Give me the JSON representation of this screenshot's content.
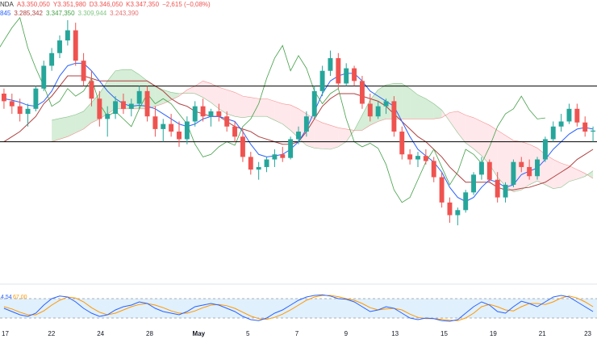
{
  "legend": {
    "ohlc": {
      "prefix": "NDA",
      "open": "A3.350,050",
      "high": "Y3.351,980",
      "low": "D3.346,050",
      "close": "K3.347,350",
      "change": "−2,615 (−0,08%)"
    },
    "ichimoku": {
      "v1": "845",
      "v2": "3.285,342",
      "v3": "3.347,350",
      "v4": "3.309,944",
      "v5": "3.243,390"
    }
  },
  "colors": {
    "bull": "#26a69a",
    "bear": "#ef5350",
    "tenkan": "#2962ff",
    "kijun": "#b04040",
    "chikou": "#43a047",
    "cloud_bull": "#a5d6a7",
    "cloud_bear": "#ffcdd2",
    "stoch_k": "#2962ff",
    "stoch_d": "#ff9800",
    "stoch_band": "#bbdefb"
  },
  "chart_data": {
    "type": "candlestick",
    "x_labels": [
      "17",
      "22",
      "24",
      "28",
      "May",
      "5",
      "7",
      "9",
      "13",
      "15",
      "19",
      "21",
      "23"
    ],
    "y_range": [
      3020,
      3530
    ],
    "horizontal_levels": [
      3400,
      3290
    ],
    "candles": [
      [
        3385,
        3395,
        3355,
        3370
      ],
      [
        3370,
        3385,
        3345,
        3360
      ],
      [
        3360,
        3375,
        3330,
        3345
      ],
      [
        3345,
        3365,
        3320,
        3355
      ],
      [
        3355,
        3400,
        3350,
        3395
      ],
      [
        3395,
        3450,
        3390,
        3440
      ],
      [
        3440,
        3475,
        3430,
        3465
      ],
      [
        3465,
        3500,
        3455,
        3490
      ],
      [
        3490,
        3530,
        3480,
        3510
      ],
      [
        3510,
        3525,
        3440,
        3450
      ],
      [
        3450,
        3465,
        3400,
        3410
      ],
      [
        3410,
        3430,
        3360,
        3375
      ],
      [
        3375,
        3390,
        3320,
        3335
      ],
      [
        3335,
        3360,
        3300,
        3345
      ],
      [
        3345,
        3380,
        3335,
        3370
      ],
      [
        3370,
        3385,
        3345,
        3355
      ],
      [
        3355,
        3375,
        3340,
        3365
      ],
      [
        3365,
        3400,
        3355,
        3390
      ],
      [
        3390,
        3400,
        3330,
        3340
      ],
      [
        3340,
        3360,
        3300,
        3315
      ],
      [
        3315,
        3335,
        3290,
        3325
      ],
      [
        3325,
        3345,
        3300,
        3310
      ],
      [
        3310,
        3330,
        3280,
        3295
      ],
      [
        3295,
        3340,
        3285,
        3330
      ],
      [
        3330,
        3370,
        3320,
        3360
      ],
      [
        3360,
        3375,
        3330,
        3340
      ],
      [
        3340,
        3355,
        3320,
        3350
      ],
      [
        3350,
        3365,
        3330,
        3340
      ],
      [
        3340,
        3350,
        3310,
        3320
      ],
      [
        3320,
        3330,
        3290,
        3300
      ],
      [
        3300,
        3315,
        3250,
        3260
      ],
      [
        3260,
        3270,
        3225,
        3235
      ],
      [
        3235,
        3250,
        3215,
        3240
      ],
      [
        3240,
        3260,
        3230,
        3255
      ],
      [
        3255,
        3275,
        3240,
        3265
      ],
      [
        3265,
        3280,
        3250,
        3258
      ],
      [
        3258,
        3300,
        3255,
        3295
      ],
      [
        3295,
        3320,
        3285,
        3310
      ],
      [
        3310,
        3350,
        3300,
        3340
      ],
      [
        3340,
        3400,
        3335,
        3390
      ],
      [
        3390,
        3440,
        3380,
        3430
      ],
      [
        3430,
        3470,
        3420,
        3455
      ],
      [
        3455,
        3465,
        3395,
        3405
      ],
      [
        3405,
        3445,
        3400,
        3435
      ],
      [
        3435,
        3440,
        3400,
        3410
      ],
      [
        3410,
        3420,
        3355,
        3365
      ],
      [
        3365,
        3385,
        3330,
        3340
      ],
      [
        3340,
        3370,
        3335,
        3360
      ],
      [
        3360,
        3375,
        3345,
        3370
      ],
      [
        3370,
        3380,
        3300,
        3310
      ],
      [
        3310,
        3320,
        3255,
        3265
      ],
      [
        3265,
        3275,
        3245,
        3255
      ],
      [
        3255,
        3270,
        3240,
        3262
      ],
      [
        3262,
        3275,
        3245,
        3252
      ],
      [
        3252,
        3260,
        3210,
        3220
      ],
      [
        3220,
        3230,
        3160,
        3170
      ],
      [
        3170,
        3180,
        3130,
        3145
      ],
      [
        3145,
        3160,
        3125,
        3155
      ],
      [
        3155,
        3195,
        3150,
        3190
      ],
      [
        3190,
        3230,
        3185,
        3225
      ],
      [
        3225,
        3260,
        3215,
        3250
      ],
      [
        3250,
        3255,
        3210,
        3215
      ],
      [
        3215,
        3230,
        3170,
        3180
      ],
      [
        3180,
        3210,
        3170,
        3205
      ],
      [
        3205,
        3255,
        3200,
        3250
      ],
      [
        3250,
        3260,
        3230,
        3240
      ],
      [
        3240,
        3255,
        3215,
        3222
      ],
      [
        3222,
        3260,
        3215,
        3255
      ],
      [
        3255,
        3300,
        3250,
        3295
      ],
      [
        3295,
        3330,
        3290,
        3320
      ],
      [
        3320,
        3345,
        3310,
        3330
      ],
      [
        3330,
        3365,
        3325,
        3355
      ],
      [
        3355,
        3365,
        3320,
        3328
      ],
      [
        3328,
        3340,
        3300,
        3310
      ],
      [
        3310,
        3320,
        3290,
        3312
      ]
    ],
    "tenkan": [
      3375,
      3372,
      3368,
      3362,
      3360,
      3370,
      3390,
      3420,
      3440,
      3445,
      3445,
      3430,
      3410,
      3390,
      3375,
      3365,
      3360,
      3362,
      3360,
      3355,
      3345,
      3335,
      3325,
      3320,
      3325,
      3335,
      3340,
      3340,
      3335,
      3330,
      3310,
      3285,
      3265,
      3260,
      3262,
      3265,
      3275,
      3290,
      3315,
      3350,
      3385,
      3410,
      3420,
      3425,
      3425,
      3410,
      3390,
      3380,
      3370,
      3360,
      3330,
      3300,
      3275,
      3262,
      3250,
      3230,
      3200,
      3180,
      3172,
      3180,
      3200,
      3215,
      3210,
      3200,
      3205,
      3225,
      3232,
      3238,
      3255,
      3275,
      3290,
      3305,
      3315,
      3318,
      3315
    ],
    "kijun": [
      3290,
      3300,
      3310,
      3325,
      3340,
      3365,
      3380,
      3400,
      3420,
      3420,
      3420,
      3415,
      3410,
      3410,
      3410,
      3410,
      3410,
      3410,
      3410,
      3400,
      3390,
      3375,
      3365,
      3360,
      3350,
      3345,
      3340,
      3340,
      3330,
      3320,
      3315,
      3310,
      3300,
      3295,
      3290,
      3285,
      3285,
      3290,
      3310,
      3335,
      3360,
      3375,
      3385,
      3385,
      3385,
      3380,
      3375,
      3370,
      3360,
      3345,
      3330,
      3315,
      3300,
      3290,
      3275,
      3260,
      3240,
      3225,
      3210,
      3210,
      3210,
      3210,
      3200,
      3195,
      3195,
      3198,
      3200,
      3205,
      3210,
      3220,
      3230,
      3240,
      3255,
      3265,
      3275
    ],
    "cloud_a": [
      null,
      null,
      null,
      null,
      null,
      null,
      null,
      null,
      null,
      null,
      null,
      null,
      null,
      null,
      null,
      null,
      null,
      null,
      null,
      null,
      null,
      null,
      null,
      null,
      null,
      null,
      null,
      null,
      null,
      null,
      null,
      null,
      null,
      null,
      null,
      null,
      null,
      null,
      null,
      null,
      null,
      null,
      null,
      null,
      null,
      null,
      null,
      null,
      null,
      null,
      null,
      null,
      null,
      null,
      null,
      null,
      null,
      null,
      null,
      null,
      null,
      null,
      null,
      null,
      null,
      null,
      null,
      null,
      null,
      null,
      null,
      null,
      null,
      null,
      null
    ],
    "stoch_range": [
      0,
      100
    ],
    "stoch_levels": [
      80,
      20
    ],
    "stoch_k": [
      50,
      40,
      30,
      25,
      35,
      60,
      80,
      88,
      85,
      70,
      50,
      35,
      25,
      30,
      45,
      55,
      60,
      70,
      65,
      50,
      40,
      35,
      30,
      40,
      55,
      60,
      65,
      60,
      50,
      40,
      25,
      15,
      12,
      20,
      35,
      45,
      60,
      75,
      85,
      90,
      92,
      88,
      80,
      78,
      70,
      55,
      40,
      45,
      55,
      50,
      35,
      20,
      15,
      20,
      18,
      12,
      10,
      15,
      35,
      55,
      70,
      60,
      40,
      35,
      55,
      72,
      65,
      55,
      70,
      85,
      90,
      85,
      70,
      55,
      40
    ],
    "stoch_d": [
      55,
      48,
      38,
      30,
      30,
      42,
      60,
      75,
      85,
      82,
      70,
      52,
      38,
      30,
      35,
      45,
      55,
      62,
      65,
      60,
      52,
      42,
      35,
      35,
      42,
      52,
      60,
      62,
      58,
      50,
      38,
      26,
      18,
      16,
      22,
      32,
      45,
      60,
      75,
      85,
      90,
      90,
      86,
      80,
      75,
      65,
      52,
      45,
      48,
      50,
      45,
      32,
      22,
      18,
      18,
      16,
      13,
      12,
      20,
      35,
      55,
      62,
      55,
      45,
      42,
      55,
      65,
      65,
      62,
      70,
      82,
      88,
      82,
      70,
      55
    ],
    "legend_values": [
      "4,54",
      "67,00"
    ]
  }
}
